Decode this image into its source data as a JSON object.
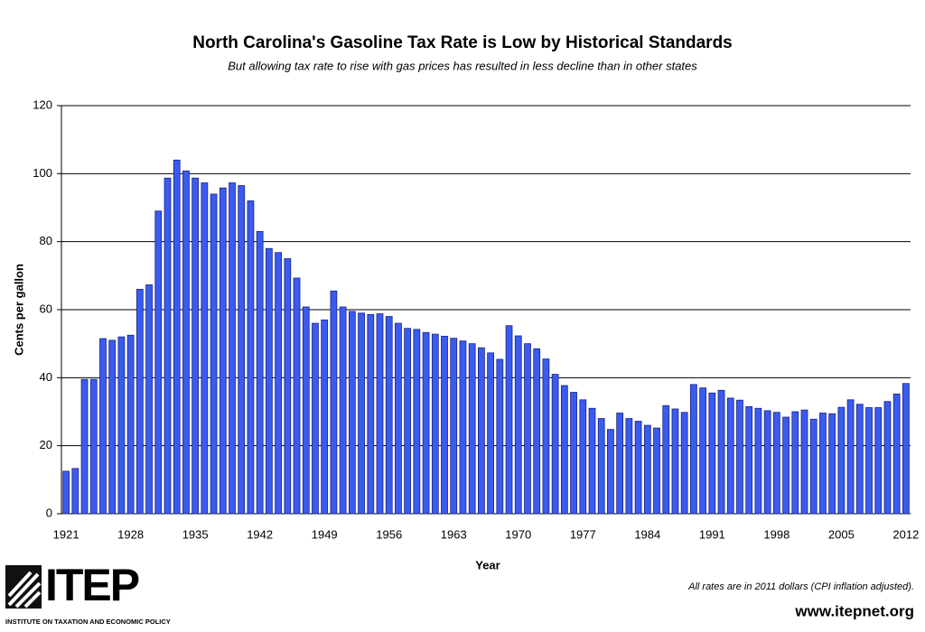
{
  "chart_data": {
    "type": "bar",
    "title": "North Carolina's Gasoline Tax Rate is Low by Historical Standards",
    "subtitle": "But allowing tax rate to rise with gas prices has resulted in less decline than in other states",
    "x_label": "Year",
    "y_label": "Cents per gallon",
    "categories": [
      "1921",
      null,
      null,
      null,
      null,
      null,
      null,
      "1928",
      null,
      null,
      null,
      null,
      null,
      null,
      "1935",
      null,
      null,
      null,
      null,
      null,
      null,
      "1942",
      null,
      null,
      null,
      null,
      null,
      null,
      "1949",
      null,
      null,
      null,
      null,
      null,
      null,
      "1956",
      null,
      null,
      null,
      null,
      null,
      null,
      "1963",
      null,
      null,
      null,
      null,
      null,
      null,
      "1970",
      null,
      null,
      null,
      null,
      null,
      null,
      "1977",
      null,
      null,
      null,
      null,
      null,
      null,
      "1984",
      null,
      null,
      null,
      null,
      null,
      null,
      "1991",
      null,
      null,
      null,
      null,
      null,
      null,
      "1998",
      null,
      null,
      null,
      null,
      null,
      null,
      "2005",
      null,
      null,
      null,
      null,
      null,
      null,
      "2012"
    ],
    "values": [
      12.5,
      13.3,
      39.5,
      39.5,
      51.5,
      51,
      52,
      52.5,
      66,
      67.3,
      89,
      98.7,
      104,
      100.8,
      98.7,
      97.3,
      94,
      95.8,
      97.3,
      96.5,
      92,
      83,
      78,
      76.8,
      75,
      69.3,
      60.8,
      56,
      57,
      65.5,
      60.8,
      59.5,
      59,
      58.6,
      58.8,
      58,
      56,
      54.5,
      54.2,
      53.3,
      52.8,
      52.2,
      51.6,
      50.8,
      50,
      48.8,
      47.3,
      45.4,
      55.3,
      52.3,
      50,
      48.5,
      45.5,
      41,
      37.7,
      35.7,
      33.5,
      31,
      28,
      24.8,
      29.6,
      28,
      27.2,
      26,
      25.2,
      31.8,
      30.8,
      29.8,
      38,
      37,
      35.5,
      36.3,
      34,
      33.4,
      31.5,
      31,
      30.3,
      29.8,
      28.4,
      30,
      30.5,
      27.8,
      29.6,
      29.4,
      31.3,
      33.5,
      32.2,
      31.2,
      31.2,
      33,
      35.2,
      38.3
    ],
    "color": "#3a5bf0",
    "ylim": [
      0,
      120
    ],
    "yticks": [
      0,
      20,
      40,
      60,
      80,
      100,
      120
    ],
    "grid": true
  },
  "footer": {
    "logo": "ITEP",
    "institute": "INSTITUTE ON TAXATION AND ECONOMIC POLICY",
    "note": "All rates are in 2011 dollars (CPI inflation adjusted).",
    "url": "www.itepnet.org"
  }
}
